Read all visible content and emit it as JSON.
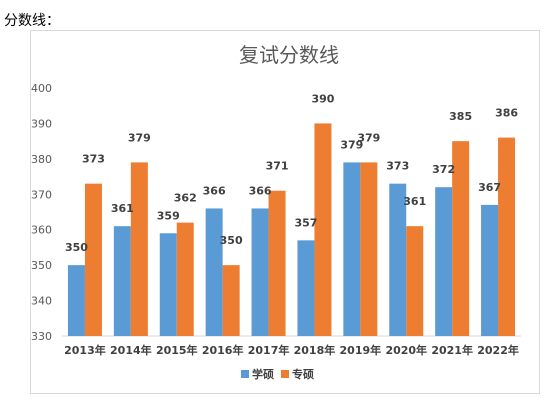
{
  "page": {
    "label": "分数线："
  },
  "chart_data": {
    "type": "bar",
    "title": "复试分数线",
    "xlabel": "",
    "ylabel": "",
    "ylim": [
      330,
      400
    ],
    "yticks": [
      330,
      340,
      350,
      360,
      370,
      380,
      390,
      400
    ],
    "grid": false,
    "legend": "bottom",
    "categories": [
      "2013年",
      "2014年",
      "2015年",
      "2016年",
      "2017年",
      "2018年",
      "2019年",
      "2020年",
      "2021年",
      "2022年"
    ],
    "series": [
      {
        "name": "学硕",
        "color": "#5b9bd5",
        "values": [
          350,
          361,
          359,
          366,
          366,
          357,
          379,
          373,
          372,
          367
        ]
      },
      {
        "name": "专硕",
        "color": "#ed7d31",
        "values": [
          373,
          379,
          362,
          350,
          371,
          390,
          379,
          361,
          385,
          386
        ]
      }
    ]
  }
}
